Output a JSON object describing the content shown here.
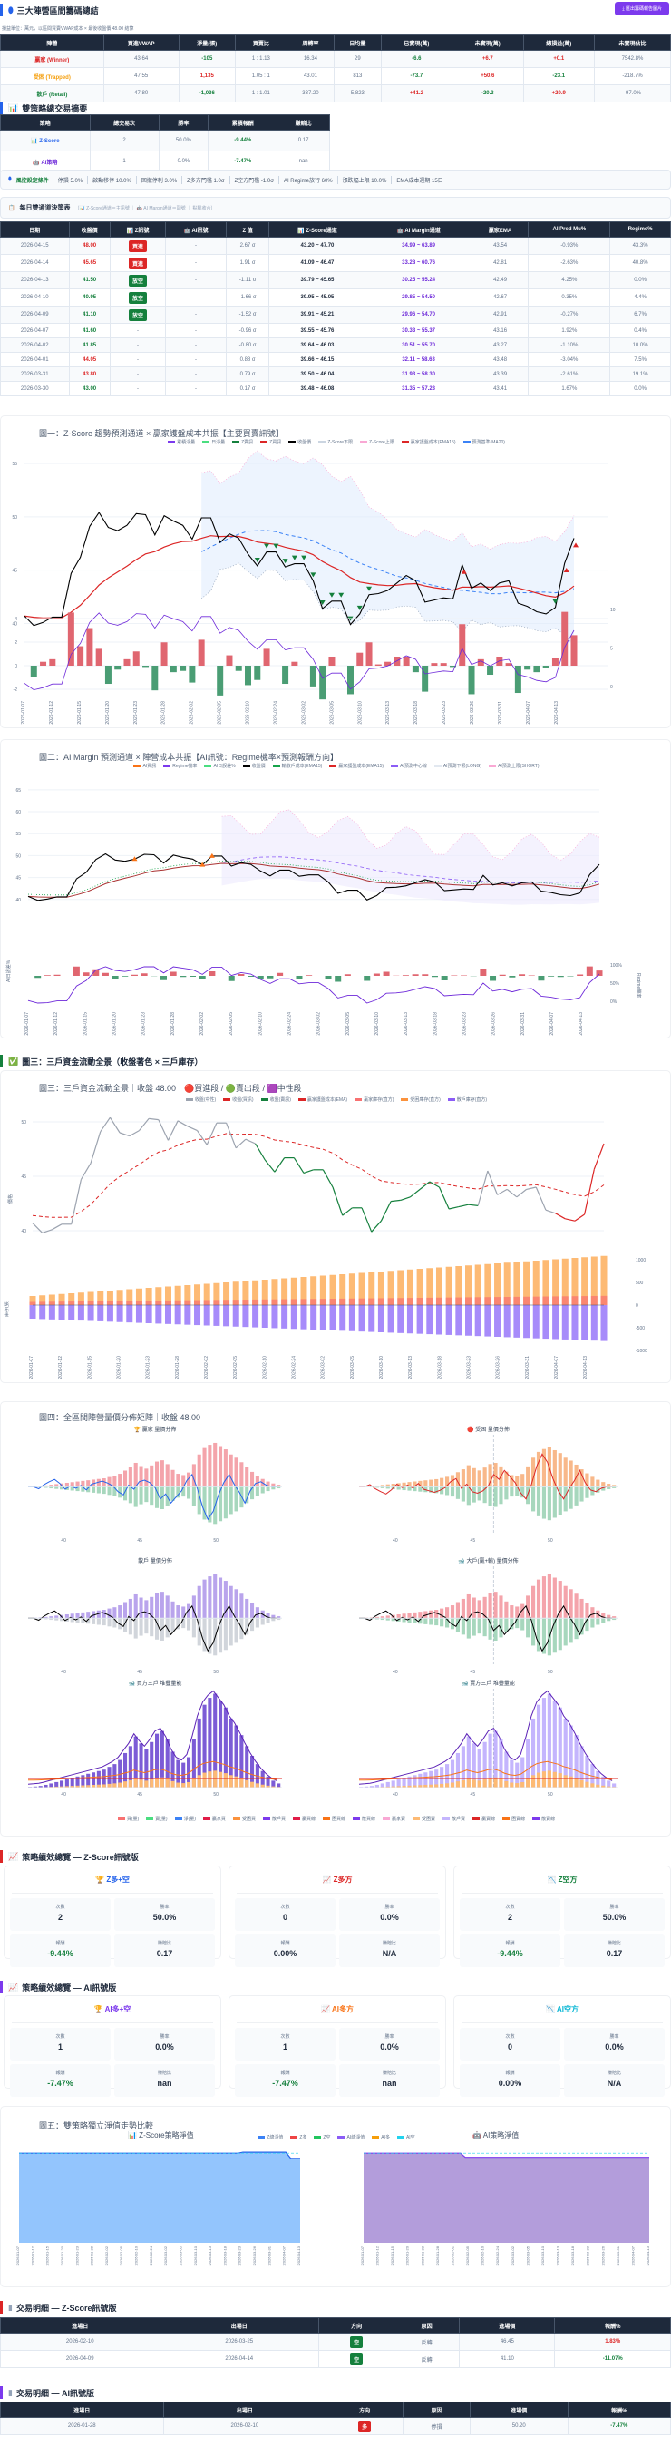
{
  "header": {
    "title": "三大陣營區間籌碼總結",
    "export_button": "匯出籌碼報告圖片",
    "subtitle": "損益單位：萬元，以區間買賣VWAP成本 × 最後收盤價 48.00 結算"
  },
  "camp_table": {
    "headers": [
      "陣營",
      "買進VWAP",
      "淨量(張)",
      "買賣比",
      "周轉率",
      "日均量",
      "已實現(萬)",
      "未實現(萬)",
      "總損益(萬)",
      "未實現佔比"
    ],
    "rows": [
      [
        "贏家 (Winner)",
        "43.64",
        "-105",
        "1 : 1.13",
        "16.34",
        "29",
        "-6.6",
        "+6.7",
        "+0.1",
        "7542.8%"
      ],
      [
        "受困 (Trapped)",
        "47.55",
        "1,135",
        "1.05 : 1",
        "43.01",
        "813",
        "-73.7",
        "+50.6",
        "-23.1",
        "-218.7%"
      ],
      [
        "散戶 (Retail)",
        "47.80",
        "-1,036",
        "1 : 1.01",
        "337.20",
        "5,823",
        "+41.2",
        "-20.3",
        "+20.9",
        "-97.0%"
      ]
    ]
  },
  "summary": {
    "title": "雙策略總交易摘要",
    "headers": [
      "策略",
      "總交易次",
      "勝率",
      "累積報酬",
      "賺賠比"
    ],
    "rows": [
      [
        "Z-Score",
        "2",
        "50.0%",
        "-9.44%",
        "0.17"
      ],
      [
        "AI策略",
        "1",
        "0.0%",
        "-7.47%",
        "nan"
      ]
    ]
  },
  "risk": {
    "label": "風控設定條件",
    "items": [
      "停損 5.0%",
      "啟動移停 10.0%",
      "回撤停利 3.0%",
      "Z多方門檻 1.0σ",
      "Z空方門檻 -1.0σ",
      "AI Regime放行 60%",
      "漲跌幅上限 10.0%",
      "EMA成本週期 15日"
    ]
  },
  "daily": {
    "title": "每日雙通道決策表",
    "note": "（📊 Z-Score通道＝主訊號 ｜ 🤖 AI Margin通道＝副號 ｜ 點擊收合）",
    "headers": [
      "日期",
      "收盤價",
      "📊 Z訊號",
      "🤖 AI訊號",
      "Z 值",
      "📊 Z-Score通道",
      "🤖 AI Margin通道",
      "贏家EMA",
      "AI Pred Mu%",
      "Regime%"
    ],
    "rows": [
      [
        "2026-04-15",
        "48.00",
        "買進",
        "-",
        "2.67 σ",
        "43.20 ~ 47.70",
        "34.99 ~ 63.89",
        "43.54",
        "-0.93%",
        "43.3%"
      ],
      [
        "2026-04-14",
        "45.65",
        "買進",
        "-",
        "1.91 σ",
        "41.09 ~ 46.47",
        "33.28 ~ 60.76",
        "42.81",
        "-2.63%",
        "40.8%"
      ],
      [
        "2026-04-13",
        "41.50",
        "放空",
        "-",
        "-1.11 σ",
        "39.79 ~ 45.65",
        "30.25 ~ 55.24",
        "42.49",
        "4.25%",
        "0.0%"
      ],
      [
        "2026-04-10",
        "40.95",
        "放空",
        "-",
        "-1.66 σ",
        "39.95 ~ 45.05",
        "29.85 ~ 54.50",
        "42.67",
        "0.35%",
        "4.4%"
      ],
      [
        "2026-04-09",
        "41.10",
        "放空",
        "-",
        "-1.52 σ",
        "39.91 ~ 45.21",
        "29.96 ~ 54.70",
        "42.91",
        "-0.27%",
        "6.7%"
      ],
      [
        "2026-04-07",
        "41.60",
        "-",
        "-",
        "-0.96 σ",
        "39.55 ~ 45.76",
        "30.33 ~ 55.37",
        "43.16",
        "1.92%",
        "0.4%"
      ],
      [
        "2026-04-02",
        "41.85",
        "-",
        "-",
        "-0.80 σ",
        "39.64 ~ 46.03",
        "30.51 ~ 55.70",
        "43.27",
        "-1.10%",
        "10.0%"
      ],
      [
        "2026-04-01",
        "44.05",
        "-",
        "-",
        "0.88 σ",
        "39.66 ~ 46.15",
        "32.11 ~ 58.63",
        "43.48",
        "-3.04%",
        "7.5%"
      ],
      [
        "2026-03-31",
        "43.80",
        "-",
        "-",
        "0.79 σ",
        "39.50 ~ 46.04",
        "31.93 ~ 58.30",
        "43.39",
        "-2.61%",
        "19.1%"
      ],
      [
        "2026-03-30",
        "43.00",
        "-",
        "-",
        "0.17 σ",
        "39.48 ~ 46.08",
        "31.35 ~ 57.23",
        "43.41",
        "1.67%",
        "0.0%"
      ]
    ]
  },
  "fig3_section": "圖三：三戶資金流動全景（收盤著色 × 三戶庫存）",
  "perf_z": {
    "title": "策略績效總覽 — Z-Score訊號版",
    "cards": [
      {
        "title": "Z多+空",
        "color": "#2563eb",
        "count": "2",
        "win": "50.0%",
        "ret": "-9.44%",
        "pl": "0.17"
      },
      {
        "title": "Z多方",
        "color": "#dc2626",
        "count": "0",
        "win": "0.0%",
        "ret": "0.00%",
        "pl": "N/A"
      },
      {
        "title": "Z空方",
        "color": "#15803d",
        "count": "2",
        "win": "50.0%",
        "ret": "-9.44%",
        "pl": "0.17"
      }
    ]
  },
  "perf_ai": {
    "title": "策略績效總覽 — AI訊號版",
    "cards": [
      {
        "title": "AI多+空",
        "color": "#7c3aed",
        "count": "1",
        "win": "0.0%",
        "ret": "-7.47%",
        "pl": "nan"
      },
      {
        "title": "AI多方",
        "color": "#f97316",
        "count": "1",
        "win": "0.0%",
        "ret": "-7.47%",
        "pl": "nan"
      },
      {
        "title": "AI空方",
        "color": "#06b6d4",
        "count": "0",
        "win": "0.0%",
        "ret": "0.00%",
        "pl": "N/A"
      }
    ]
  },
  "perf_labels": {
    "count": "次數",
    "win": "勝率",
    "ret": "報酬",
    "pl": "賺賠比"
  },
  "trades_z": {
    "title": "交易明細 — Z-Score訊號版",
    "headers": [
      "進場日",
      "出場日",
      "方向",
      "原因",
      "進場價",
      "報酬%"
    ],
    "rows": [
      [
        "2026-02-10",
        "2026-03-25",
        "空",
        "反轉",
        "46.45",
        "1.83%"
      ],
      [
        "2026-04-09",
        "2026-04-14",
        "空",
        "反轉",
        "41.10",
        "-11.07%"
      ]
    ]
  },
  "trades_ai": {
    "title": "交易明細 — AI訊號版",
    "headers": [
      "進場日",
      "出場日",
      "方向",
      "原因",
      "進場價",
      "報酬%"
    ],
    "rows": [
      [
        "2026-01-28",
        "2026-02-10",
        "多",
        "停損",
        "50.20",
        "-7.47%"
      ]
    ]
  },
  "chart_data": {
    "dates": [
      "2026-01-07",
      "2026-01-12",
      "2026-01-15",
      "2026-01-20",
      "2026-01-23",
      "2026-01-28",
      "2026-02-02",
      "2026-02-05",
      "2026-02-10",
      "2026-02-24",
      "2026-03-02",
      "2026-03-05",
      "2026-03-10",
      "2026-03-13",
      "2026-03-18",
      "2026-03-23",
      "2026-03-26",
      "2026-03-31",
      "2026-04-07",
      "2026-04-13"
    ],
    "close": [
      40.7,
      39.8,
      40.1,
      40.6,
      40.6,
      44.7,
      46.2,
      49.1,
      50.4,
      49.0,
      48.7,
      49.2,
      50.3,
      50.2,
      48.3,
      50.1,
      49.6,
      49.2,
      47.9,
      49.9,
      49.9,
      47.6,
      48.4,
      48.0,
      46.5,
      45.4,
      46.7,
      46.7,
      45.3,
      45.6,
      45.6,
      44.0,
      41.4,
      42.1,
      42.1,
      39.9,
      40.9,
      42.7,
      42.8,
      43.1,
      43.8,
      44.5,
      44.0,
      42.0,
      42.2,
      42.4,
      42.3,
      45.5,
      43.3,
      43.8,
      43.1,
      43.8,
      44.0,
      41.9,
      41.6,
      41.1,
      40.9,
      41.5,
      45.65,
      48.0
    ],
    "z_short_idx": [
      25,
      26,
      27,
      28,
      29,
      30,
      31,
      32,
      33,
      34,
      35,
      36,
      37,
      57
    ],
    "z_long_idx": [
      47,
      58,
      59
    ],
    "fig1": {
      "title": "圖一：Z-Score 趨勢預測通道 × 贏家護盤成本共振【主要買賣訊號】",
      "legend": [
        "累積淨量",
        "日淨量",
        "Z賣訊",
        "Z買訊",
        "收盤價",
        "Z-Score下限",
        "Z-Score上限",
        "贏家護盤成本(EMA15)",
        "預測基準(MA20)"
      ],
      "ylim": [
        38,
        55
      ],
      "yticks": [
        40,
        45,
        50,
        55
      ],
      "y2ticks": [
        -2,
        0,
        2,
        4
      ],
      "y3ticks": [
        0,
        5,
        10
      ]
    },
    "fig2": {
      "title": "圖二：AI Margin 預測通道 × 陣營成本共振【AI訊號：Regime機率×預測報酬方向】",
      "legend": [
        "AI買訊",
        "Regime機率",
        "AI日誤差%",
        "收盤價",
        "輸散戶成本(EMA15)",
        "贏家護盤成本(EMA15)",
        "AI預測中心線",
        "AI預測下限(LONG)",
        "AI預測上限(SHORT)"
      ],
      "ylim": [
        35,
        66
      ],
      "yticks": [
        40,
        45,
        50,
        55,
        60,
        65
      ],
      "ylabel": "AI日誤差%",
      "y2label": "Regime機率",
      "y2ticks": [
        "0%",
        "50%",
        "100%"
      ]
    },
    "fig3": {
      "title": "圖三：三戶資金流動全景｜收盤 48.00｜🔴買進段 / 🟢賣出段 / 🟪中性段",
      "legend": [
        "收盤(中性)",
        "收盤(買訊)",
        "收盤(賣訊)",
        "贏家護盤成本(EMA)",
        "贏家庫存(直方)",
        "受困庫存(直方)",
        "散戶庫存(直方)"
      ],
      "ylabel": "價格",
      "ylabel2": "庫存(張)",
      "yticks": [
        40,
        45,
        50
      ],
      "y2ticks": [
        -1000,
        -500,
        0,
        500,
        1000
      ]
    },
    "fig4": {
      "title": "圖四：全區間陣營量價分佈矩陣｜收盤 48.00",
      "panels": [
        "🏆 贏家 量價分佈",
        "🔴 受困 量價分佈",
        "散戶 量價分佈",
        "🐋 大戶(贏+輸) 量價分佈",
        "🐋 買方三戶 堆疊量能",
        "🐋 賣方三戶 堆疊量能"
      ],
      "xticks": [
        "40",
        "45",
        "50"
      ],
      "profile": [
        50,
        80,
        120,
        200,
        300,
        400,
        500,
        600,
        700,
        800,
        900,
        1000,
        1100,
        1200,
        1300,
        1500,
        1700,
        2000,
        2500,
        3000,
        3700,
        3200,
        2800,
        3300,
        3900,
        4100,
        3500,
        2600,
        2000,
        1800,
        2200,
        3500,
        5000,
        6000,
        6500,
        6800,
        6300,
        5800,
        5000,
        4500,
        3800,
        3000,
        2300,
        1700,
        1200,
        800,
        500,
        300
      ],
      "net": [
        0,
        0,
        -5,
        5,
        12,
        18,
        8,
        -6,
        2,
        -4,
        3,
        -8,
        6,
        10,
        14,
        9,
        2,
        -12,
        -20,
        4,
        -6,
        12,
        16,
        10,
        -2,
        -30,
        -18,
        -40,
        -25,
        -10,
        15,
        30,
        -5,
        -50,
        -80,
        -60,
        -20,
        10,
        30,
        5,
        -15,
        -40,
        -10,
        8,
        12,
        4,
        0,
        0
      ],
      "legend": [
        "買(量)",
        "賣(量)",
        "淨(量)",
        "贏家買",
        "受困買",
        "散戶買",
        "贏買線",
        "困買線",
        "散買線",
        "贏家賣",
        "受困賣",
        "散戶賣",
        "贏賣線",
        "困賣線",
        "散賣線"
      ]
    },
    "fig5": {
      "title": "圖五：雙策略獨立淨值走勢比較",
      "left_title": "📊 Z-Score策略淨值",
      "right_title": "🤖 AI策略淨值",
      "legend": [
        "Z總淨值",
        "Z多",
        "Z空",
        "AI總淨值",
        "AI多",
        "AI空"
      ],
      "z_equity": [
        1,
        1,
        1,
        1,
        1,
        1,
        1,
        1,
        1,
        1,
        1,
        1,
        1,
        1,
        1,
        1,
        1,
        1,
        1,
        1,
        1,
        1,
        1,
        1,
        1,
        1,
        1,
        1,
        1,
        1,
        1,
        1,
        1,
        1,
        1,
        1,
        1,
        1,
        1,
        1,
        1,
        1,
        1,
        1,
        1,
        1,
        1,
        1.018,
        1.018,
        1.018,
        1.018,
        1.018,
        1.018,
        1.018,
        1.018,
        1.018,
        1.018,
        0.906,
        0.906,
        0.906
      ],
      "ai_equity": [
        1,
        1,
        1,
        1,
        1,
        1,
        1,
        1,
        1,
        1,
        1,
        1,
        1,
        1,
        1,
        1,
        1,
        1,
        1,
        1,
        1,
        0.925,
        0.925,
        0.925,
        0.925,
        0.925,
        0.925,
        0.925,
        0.925,
        0.925,
        0.925,
        0.925,
        0.925,
        0.925,
        0.925,
        0.925,
        0.925,
        0.925,
        0.925,
        0.925,
        0.925,
        0.925,
        0.925,
        0.925,
        0.925,
        0.925,
        0.925,
        0.925,
        0.925,
        0.925,
        0.925,
        0.925,
        0.925,
        0.925,
        0.925,
        0.925,
        0.925,
        0.925,
        0.925,
        0.925
      ]
    }
  },
  "colors": {
    "up": "#dc2626",
    "down": "#15803d",
    "ai": "#7c3aed",
    "header": "#1e293b"
  }
}
